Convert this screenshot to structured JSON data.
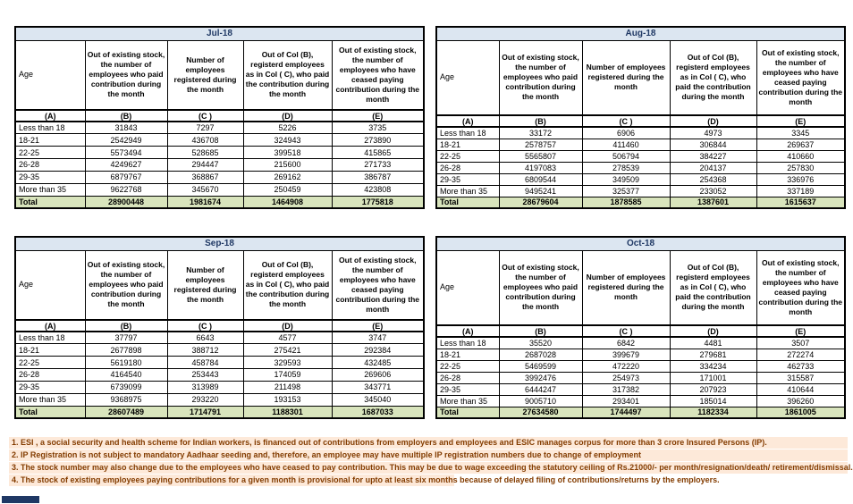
{
  "columns": {
    "age_label": "Age",
    "b": "Out of existing stock, the number of employees who paid contribution during the month",
    "c": "Number of employees registered during the month",
    "d": "Out of Col (B), registerd employees as in Col ( C), who paid the contribution during the month",
    "e": "Out of existing stock, the number of  employees who have ceased paying contribution during the month",
    "letters": [
      "(A)",
      "(B)",
      "(C )",
      "(D)",
      "(E)"
    ]
  },
  "tables": [
    {
      "month": "Jul-18",
      "rows": [
        [
          "Less than 18",
          "31843",
          "7297",
          "5226",
          "3735"
        ],
        [
          "18-21",
          "2542949",
          "436708",
          "324943",
          "273890"
        ],
        [
          "22-25",
          "5573494",
          "528685",
          "399518",
          "415865"
        ],
        [
          "26-28",
          "4249627",
          "294447",
          "215600",
          "271733"
        ],
        [
          "29-35",
          "6879767",
          "368867",
          "269162",
          "386787"
        ],
        [
          "More than 35",
          "9622768",
          "345670",
          "250459",
          "423808"
        ]
      ],
      "total": [
        "Total",
        "28900448",
        "1981674",
        "1464908",
        "1775818"
      ]
    },
    {
      "month": "Aug-18",
      "rows": [
        [
          "Less than 18",
          "33172",
          "6906",
          "4973",
          "3345"
        ],
        [
          "18-21",
          "2578757",
          "411460",
          "306844",
          "269637"
        ],
        [
          "22-25",
          "5565807",
          "506794",
          "384227",
          "410660"
        ],
        [
          "26-28",
          "4197083",
          "278539",
          "204137",
          "257830"
        ],
        [
          "29-35",
          "6809544",
          "349509",
          "254368",
          "336976"
        ],
        [
          "More than 35",
          "9495241",
          "325377",
          "233052",
          "337189"
        ]
      ],
      "total": [
        "Total",
        "28679604",
        "1878585",
        "1387601",
        "1615637"
      ]
    },
    {
      "month": "Sep-18",
      "rows": [
        [
          "Less than 18",
          "37797",
          "6643",
          "4577",
          "3747"
        ],
        [
          "18-21",
          "2677898",
          "388712",
          "275421",
          "292384"
        ],
        [
          "22-25",
          "5619180",
          "458784",
          "329593",
          "432485"
        ],
        [
          "26-28",
          "4164540",
          "253443",
          "174059",
          "269606"
        ],
        [
          "29-35",
          "6739099",
          "313989",
          "211498",
          "343771"
        ],
        [
          "More than 35",
          "9368975",
          "293220",
          "193153",
          "345040"
        ]
      ],
      "total": [
        "Total",
        "28607489",
        "1714791",
        "1188301",
        "1687033"
      ]
    },
    {
      "month": "Oct-18",
      "rows": [
        [
          "Less than 18",
          "35520",
          "6842",
          "4481",
          "3507"
        ],
        [
          "18-21",
          "2687028",
          "399679",
          "279681",
          "272274"
        ],
        [
          "22-25",
          "5469599",
          "472220",
          "334234",
          "462733"
        ],
        [
          "26-28",
          "3992476",
          "254973",
          "171001",
          "315587"
        ],
        [
          "29-35",
          "6444247",
          "317382",
          "207923",
          "410644"
        ],
        [
          "More than 35",
          "9005710",
          "293401",
          "185014",
          "396260"
        ]
      ],
      "total": [
        "Total",
        "27634580",
        "1744497",
        "1182334",
        "1861005"
      ]
    }
  ],
  "footnotes": [
    "1. ESI , a social security and health scheme for Indian workers, is financed out of contributions from employers and employees and ESIC manages corpus for more than 3 crore Insured Persons (IP).",
    "2. IP Registration is not subject to mandatory Aadhaar seeding and, therefore, an employee may have multiple IP registration numbers due to change of employment",
    "3. The stock number may also change due to the employees who have ceased to pay contribution. This may  be due to wage exceeding the statutory ceiling of  Rs.21000/- per month/resignation/death/ retirement/dismissal.",
    "4. The stock of existing employees paying contributions for a given month is provisional for upto at least six months because of delayed filing of contributions/returns by the employers."
  ],
  "colors": {
    "month_header_bg": "#DCE6F1",
    "month_header_text": "#1F3864",
    "total_row_bg": "#D8E4BC",
    "footnote_bg": "#FDE9D9",
    "footnote_text": "#833C00",
    "table_border": "#000000"
  }
}
